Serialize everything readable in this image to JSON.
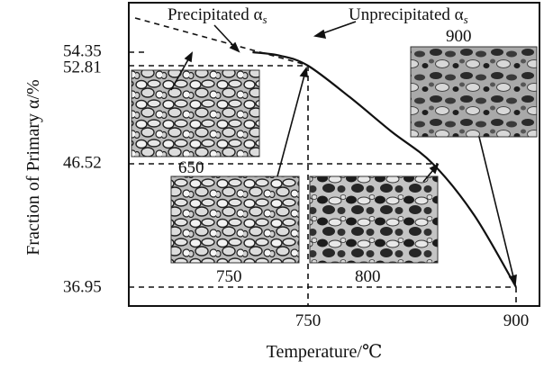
{
  "chart_data": {
    "type": "line",
    "title": "",
    "xlabel": "Temperature/℃",
    "ylabel": "Fraction of Primary α/%",
    "xlim": [
      700,
      905
    ],
    "ylim": [
      35.5,
      57.5
    ],
    "x_ticks": [
      "750",
      "900"
    ],
    "y_ticks": [
      "36.95",
      "46.52",
      "52.81",
      "54.35"
    ],
    "grid": false,
    "series": [
      {
        "name": "",
        "points": [
          {
            "x": 710,
            "y": 54.35
          },
          {
            "x": 730,
            "y": 53.95
          },
          {
            "x": 750,
            "y": 52.81
          },
          {
            "x": 780,
            "y": 50.8
          },
          {
            "x": 810,
            "y": 48.6
          },
          {
            "x": 840,
            "y": 46.52
          },
          {
            "x": 870,
            "y": 42.5
          },
          {
            "x": 900,
            "y": 36.95
          }
        ]
      }
    ],
    "reference_values": [
      {
        "x": 750,
        "y": 52.81
      },
      {
        "x": 840,
        "y": 46.52
      },
      {
        "x": 900,
        "y": 36.95
      }
    ],
    "annotations": {
      "precipitated": "Precipitated α",
      "unprecipitated": "Unprecipitated α",
      "subscript": "s"
    },
    "insets": [
      {
        "label": "650",
        "tone": "light"
      },
      {
        "label": "750",
        "tone": "light"
      },
      {
        "label": "800",
        "tone": "dark"
      },
      {
        "label": "900",
        "tone": "gray"
      }
    ]
  }
}
